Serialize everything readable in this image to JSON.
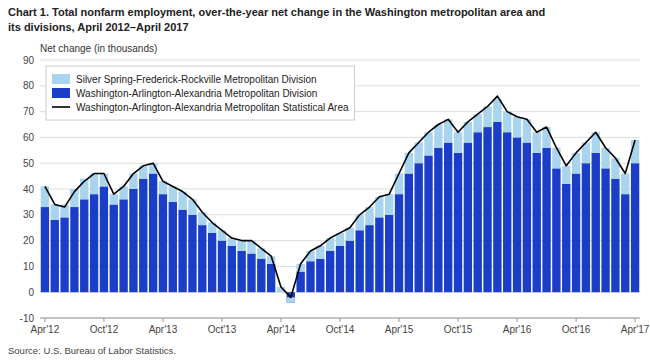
{
  "chart_data": {
    "type": "bar",
    "stacked": true,
    "title": "Chart 1. Total nonfarm employment, over-the-year net change in the Washington metropolitan area and",
    "subtitle": "its divisions, April 2012–April 2017",
    "y_label": "Net change (in thousands)",
    "annotations": [
      "Source: U.S. Bureau of Labor Statistics."
    ],
    "categories": [
      "Apr'12",
      null,
      null,
      null,
      null,
      null,
      "Oct'12",
      null,
      null,
      null,
      null,
      null,
      "Apr'13",
      null,
      null,
      null,
      null,
      null,
      "Oct'13",
      null,
      null,
      null,
      null,
      null,
      "Apr'14",
      null,
      null,
      null,
      null,
      null,
      "Oct'14",
      null,
      null,
      null,
      null,
      null,
      "Apr'15",
      null,
      null,
      null,
      null,
      null,
      "Oct'15",
      null,
      null,
      null,
      null,
      null,
      "Apr'16",
      null,
      null,
      null,
      null,
      null,
      "Oct'16",
      null,
      null,
      null,
      null,
      null,
      "Apr'17"
    ],
    "series": [
      {
        "name": "Washington-Arlington-Alexandria Metropolitan Division",
        "type": "bar",
        "color": "#1A3EC8",
        "values": [
          33,
          28,
          29,
          33,
          36,
          38,
          41,
          34,
          36,
          40,
          44,
          46,
          38,
          35,
          32,
          30,
          26,
          23,
          20,
          18,
          16,
          15,
          13,
          11,
          0,
          -4,
          8,
          12,
          13,
          16,
          18,
          20,
          24,
          26,
          29,
          30,
          38,
          46,
          50,
          53,
          56,
          58,
          54,
          58,
          62,
          64,
          66,
          62,
          60,
          58,
          54,
          56,
          48,
          42,
          46,
          50,
          54,
          48,
          44,
          38,
          50
        ]
      },
      {
        "name": "Silver Spring-Frederick-Rockville Metropolitan Division",
        "type": "bar",
        "color": "#A8D4EE",
        "values": [
          8,
          6,
          5,
          7,
          8,
          8,
          5,
          4,
          5,
          6,
          5,
          4,
          5,
          6,
          7,
          6,
          5,
          4,
          4,
          3,
          4,
          5,
          4,
          3,
          2,
          2,
          3,
          4,
          5,
          5,
          5,
          5,
          6,
          7,
          8,
          8,
          8,
          8,
          8,
          9,
          9,
          9,
          8,
          8,
          7,
          8,
          9,
          8,
          8,
          9,
          8,
          8,
          8,
          7,
          8,
          8,
          8,
          8,
          8,
          8,
          9
        ]
      },
      {
        "name": "Washington-Arlington-Alexandria Metropolitan Statistical Area",
        "type": "line",
        "color": "#000000",
        "values": [
          41,
          34,
          33,
          39,
          43,
          46,
          46,
          38,
          41,
          46,
          49,
          50,
          43,
          41,
          39,
          36,
          31,
          27,
          24,
          21,
          20,
          20,
          17,
          14,
          2,
          -2,
          11,
          16,
          18,
          21,
          23,
          25,
          30,
          33,
          37,
          38,
          46,
          54,
          58,
          62,
          65,
          67,
          62,
          66,
          69,
          72,
          76,
          70,
          68,
          67,
          62,
          64,
          56,
          49,
          54,
          58,
          62,
          56,
          52,
          46,
          59
        ]
      }
    ],
    "ylim": [
      -10,
      90
    ],
    "yticks": [
      -10,
      0,
      10,
      20,
      30,
      40,
      50,
      60,
      70,
      80,
      90
    ],
    "grid": true,
    "legend": "upper left"
  }
}
